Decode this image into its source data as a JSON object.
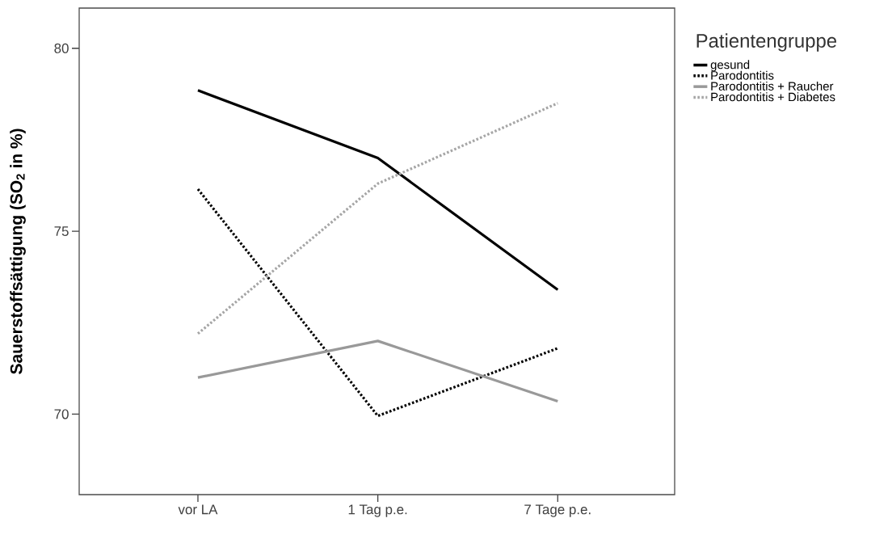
{
  "chart_data": {
    "type": "line",
    "ylabel": "**Sauerstoffsättigung (SO$_{2}$ in %)**",
    "legend_title": "Patientengruppe",
    "categories": [
      "vor LA",
      "1 Tag p.e.",
      "7 Tage p.e."
    ],
    "series": [
      {
        "name": "gesund",
        "color": "#000000",
        "line_style": "solid",
        "values": [
          78.85,
          77.0,
          73.4
        ]
      },
      {
        "name": "Parodontitis",
        "color": "#000000",
        "line_style": "dotted",
        "values": [
          76.15,
          69.95,
          71.8
        ]
      },
      {
        "name": "Parodontitis + Raucher",
        "color": "#999999",
        "line_style": "solid",
        "values": [
          71.0,
          72.0,
          70.35
        ]
      },
      {
        "name": "Parodontitis + Diabetes",
        "color": "#a6a6a6",
        "line_style": "dotted",
        "values": [
          72.2,
          76.3,
          78.5
        ]
      }
    ],
    "ylim": [
      67.8,
      81.1
    ],
    "yticks": [
      70,
      75,
      80
    ],
    "grid": false,
    "legend": "top right",
    "marker": "none"
  }
}
